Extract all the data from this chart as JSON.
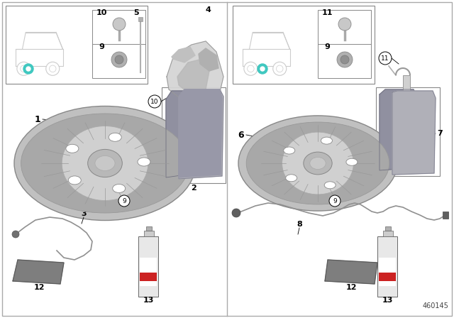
{
  "bg_color": "#ffffff",
  "part_number_text": "460145",
  "cyan_color": "#40c8c0",
  "gray_light": "#d0d0d0",
  "gray_mid": "#a8a8a8",
  "gray_dark": "#808080",
  "gray_disc": "#b8b8b8",
  "gray_pad": "#9898a0"
}
